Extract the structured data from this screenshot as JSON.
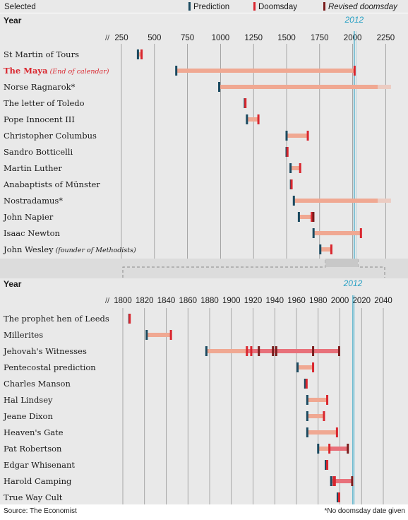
{
  "legend": {
    "selected": "Selected",
    "prediction": "Prediction",
    "doomsday": "Doomsday",
    "revised": "Revised doomsday"
  },
  "colors": {
    "panel_bg": "#e9e9e9",
    "separator_bg": "#dcdcdc",
    "prediction": "#1b4a60",
    "doomsday": "#d9262e",
    "revised": "#7a1d1d",
    "bar": "#f0a892",
    "bar_revised": "#e8707a",
    "year2012": "#2aa1c4",
    "grid": "#8a8a8a",
    "highlight_text": "#d9262e"
  },
  "footer": {
    "source": "Source: The Economist",
    "note": "*No doomsday date given"
  },
  "chart_data": [
    {
      "type": "bar",
      "title": "Year",
      "marker_label": "2012",
      "marker_value": 2012,
      "xlim": [
        235,
        2290
      ],
      "ticks": [
        250,
        500,
        750,
        1000,
        1250,
        1500,
        1750,
        2000,
        2250
      ],
      "tick_labels": [
        "250",
        "500",
        "750",
        "1000",
        "1250",
        "1500",
        "1750",
        "2000",
        "2250"
      ],
      "rows": [
        {
          "label": "St Martin of Tours",
          "note": "",
          "selected": false,
          "start": 375,
          "end": 400,
          "prediction": [
            375
          ],
          "doomsday": [
            400
          ],
          "revised": [],
          "open": false,
          "revised_span": null
        },
        {
          "label": "The Maya",
          "note": "(End of calendar)",
          "selected": true,
          "start": 665,
          "end": 2012,
          "prediction": [
            665
          ],
          "doomsday": [
            2012
          ],
          "revised": [],
          "open": false,
          "revised_span": null
        },
        {
          "label": "Norse Ragnarok*",
          "note": "",
          "selected": false,
          "start": 990,
          "end": 2290,
          "prediction": [
            990
          ],
          "doomsday": [],
          "revised": [],
          "open": true,
          "revised_span": null
        },
        {
          "label": "The letter of Toledo",
          "note": "",
          "selected": false,
          "start": 1184,
          "end": 1186,
          "prediction": [
            1184
          ],
          "doomsday": [
            1186
          ],
          "revised": [],
          "open": false,
          "revised_span": null
        },
        {
          "label": "Pope Innocent III",
          "note": "",
          "selected": false,
          "start": 1200,
          "end": 1284,
          "prediction": [
            1200
          ],
          "doomsday": [
            1284
          ],
          "revised": [],
          "open": false,
          "revised_span": null
        },
        {
          "label": "Christopher Columbus",
          "note": "",
          "selected": false,
          "start": 1500,
          "end": 1658,
          "prediction": [
            1500
          ],
          "doomsday": [
            1658
          ],
          "revised": [],
          "open": false,
          "revised_span": null
        },
        {
          "label": "Sandro Botticelli",
          "note": "",
          "selected": false,
          "start": 1500,
          "end": 1504,
          "prediction": [
            1500
          ],
          "doomsday": [
            1504
          ],
          "revised": [],
          "open": false,
          "revised_span": null
        },
        {
          "label": "Martin Luther",
          "note": "",
          "selected": false,
          "start": 1530,
          "end": 1600,
          "prediction": [
            1530
          ],
          "doomsday": [
            1600
          ],
          "revised": [],
          "open": false,
          "revised_span": null
        },
        {
          "label": "Anabaptists of Münster",
          "note": "",
          "selected": false,
          "start": 1533,
          "end": 1535,
          "prediction": [
            1533
          ],
          "doomsday": [
            1535
          ],
          "revised": [],
          "open": false,
          "revised_span": null
        },
        {
          "label": "Nostradamus*",
          "note": "",
          "selected": false,
          "start": 1555,
          "end": 2290,
          "prediction": [
            1555
          ],
          "doomsday": [],
          "revised": [],
          "open": true,
          "revised_span": null
        },
        {
          "label": "John Napier",
          "note": "",
          "selected": false,
          "start": 1593,
          "end": 1688,
          "prediction": [
            1593
          ],
          "doomsday": [
            1688
          ],
          "revised": [
            1700
          ],
          "open": false,
          "revised_span": null
        },
        {
          "label": "Isaac Newton",
          "note": "",
          "selected": false,
          "start": 1704,
          "end": 2060,
          "prediction": [
            1704
          ],
          "doomsday": [
            2060
          ],
          "revised": [],
          "open": false,
          "revised_span": null
        },
        {
          "label": "John Wesley",
          "note": "(founder of Methodists)",
          "selected": false,
          "start": 1755,
          "end": 1836,
          "prediction": [
            1755
          ],
          "doomsday": [
            1836
          ],
          "revised": [],
          "open": false,
          "revised_span": null
        }
      ]
    },
    {
      "type": "bar",
      "title": "Year",
      "marker_label": "2012",
      "marker_value": 2012,
      "xlim": [
        1797,
        2043
      ],
      "ticks": [
        1800,
        1820,
        1840,
        1860,
        1880,
        1900,
        1920,
        1940,
        1960,
        1980,
        2000,
        2020,
        2040
      ],
      "tick_labels": [
        "1800",
        "1820",
        "1840",
        "1860",
        "1880",
        "1900",
        "1920",
        "1940",
        "1960",
        "1980",
        "2000",
        "2020",
        "2040"
      ],
      "rows": [
        {
          "label": "The prophet hen of Leeds",
          "note": "",
          "selected": false,
          "start": 1806,
          "end": 1806,
          "prediction": [
            1806
          ],
          "doomsday": [
            1806
          ],
          "revised": [],
          "open": false,
          "revised_span": null
        },
        {
          "label": "Millerites",
          "note": "",
          "selected": false,
          "start": 1822,
          "end": 1844,
          "prediction": [
            1822
          ],
          "doomsday": [
            1844
          ],
          "revised": [],
          "open": false,
          "revised_span": null
        },
        {
          "label": "Jehovah's Witnesses",
          "note": "",
          "selected": false,
          "start": 1877,
          "end": 1999,
          "prediction": [
            1877
          ],
          "doomsday": [
            1914,
            1918
          ],
          "revised": [
            1925,
            1938,
            1941,
            1975,
            1999
          ],
          "open": false,
          "revised_span": [
            1914,
            1999
          ]
        },
        {
          "label": "Pentecostal prediction",
          "note": "",
          "selected": false,
          "start": 1961,
          "end": 1975,
          "prediction": [
            1961
          ],
          "doomsday": [
            1975
          ],
          "revised": [],
          "open": false,
          "revised_span": null
        },
        {
          "label": "Charles Manson",
          "note": "",
          "selected": false,
          "start": 1968,
          "end": 1969,
          "prediction": [
            1968
          ],
          "doomsday": [
            1969
          ],
          "revised": [],
          "open": false,
          "revised_span": null
        },
        {
          "label": "Hal Lindsey",
          "note": "",
          "selected": false,
          "start": 1970,
          "end": 1988,
          "prediction": [
            1970
          ],
          "doomsday": [
            1988
          ],
          "revised": [],
          "open": false,
          "revised_span": null
        },
        {
          "label": "Jeane Dixon",
          "note": "",
          "selected": false,
          "start": 1970,
          "end": 1985,
          "prediction": [
            1970
          ],
          "doomsday": [
            1985
          ],
          "revised": [],
          "open": false,
          "revised_span": null
        },
        {
          "label": "Heaven's Gate",
          "note": "",
          "selected": false,
          "start": 1970,
          "end": 1997,
          "prediction": [
            1970
          ],
          "doomsday": [
            1997
          ],
          "revised": [],
          "open": false,
          "revised_span": null
        },
        {
          "label": "Pat Robertson",
          "note": "",
          "selected": false,
          "start": 1980,
          "end": 2007,
          "prediction": [
            1980
          ],
          "doomsday": [
            1990
          ],
          "revised": [
            2007
          ],
          "open": false,
          "revised_span": [
            1990,
            2007
          ]
        },
        {
          "label": "Edgar Whisenant",
          "note": "",
          "selected": false,
          "start": 1987,
          "end": 1988,
          "prediction": [
            1987
          ],
          "doomsday": [
            1988
          ],
          "revised": [],
          "open": false,
          "revised_span": null
        },
        {
          "label": "Harold Camping",
          "note": "",
          "selected": false,
          "start": 1992,
          "end": 2011,
          "prediction": [
            1992
          ],
          "doomsday": [
            1994,
            1995
          ],
          "revised": [
            2011
          ],
          "open": false,
          "revised_span": [
            1994,
            2011
          ]
        },
        {
          "label": "True Way Cult",
          "note": "",
          "selected": false,
          "start": 1998,
          "end": 1999,
          "prediction": [
            1998
          ],
          "doomsday": [
            1999
          ],
          "revised": [],
          "open": false,
          "revised_span": null
        }
      ]
    }
  ]
}
